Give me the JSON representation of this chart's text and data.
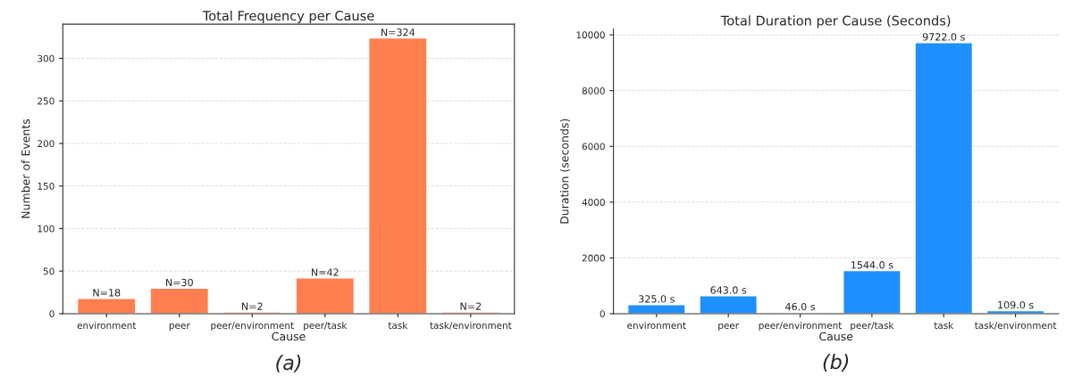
{
  "chart_data": [
    {
      "type": "bar",
      "title": "Total Frequency per Cause",
      "xlabel": "Cause",
      "ylabel": "Number of Events",
      "categories": [
        "environment",
        "peer",
        "peer/environment",
        "peer/task",
        "task",
        "task/environment"
      ],
      "values": [
        18,
        30,
        2,
        42,
        324,
        2
      ],
      "color": "#ff7f50",
      "value_labels": [
        "N=18",
        "N=30",
        "N=2",
        "N=42",
        "N=324",
        "N=2"
      ],
      "ylim": [
        0,
        340.2
      ],
      "yticks": [
        0,
        50,
        100,
        150,
        200,
        250,
        300
      ],
      "grid": "y",
      "annotations": [
        "(a)"
      ]
    },
    {
      "type": "bar",
      "title": "Total Duration per Cause (Seconds)",
      "xlabel": "Cause",
      "ylabel": "Duration (seconds)",
      "categories": [
        "environment",
        "peer",
        "peer/environment",
        "peer/task",
        "task",
        "task/environment"
      ],
      "values": [
        325.0,
        643.0,
        46.0,
        1544.0,
        9722.0,
        109.0
      ],
      "color": "#1e90ff",
      "value_labels": [
        "325.0 s",
        "643.0 s",
        "46.0 s",
        "1544.0 s",
        "9722.0 s",
        "109.0 s"
      ],
      "ylim": [
        0,
        10208
      ],
      "yticks": [
        0,
        2000,
        4000,
        6000,
        8000,
        10000
      ],
      "grid": "y",
      "annotations": [
        "(b)"
      ]
    }
  ]
}
